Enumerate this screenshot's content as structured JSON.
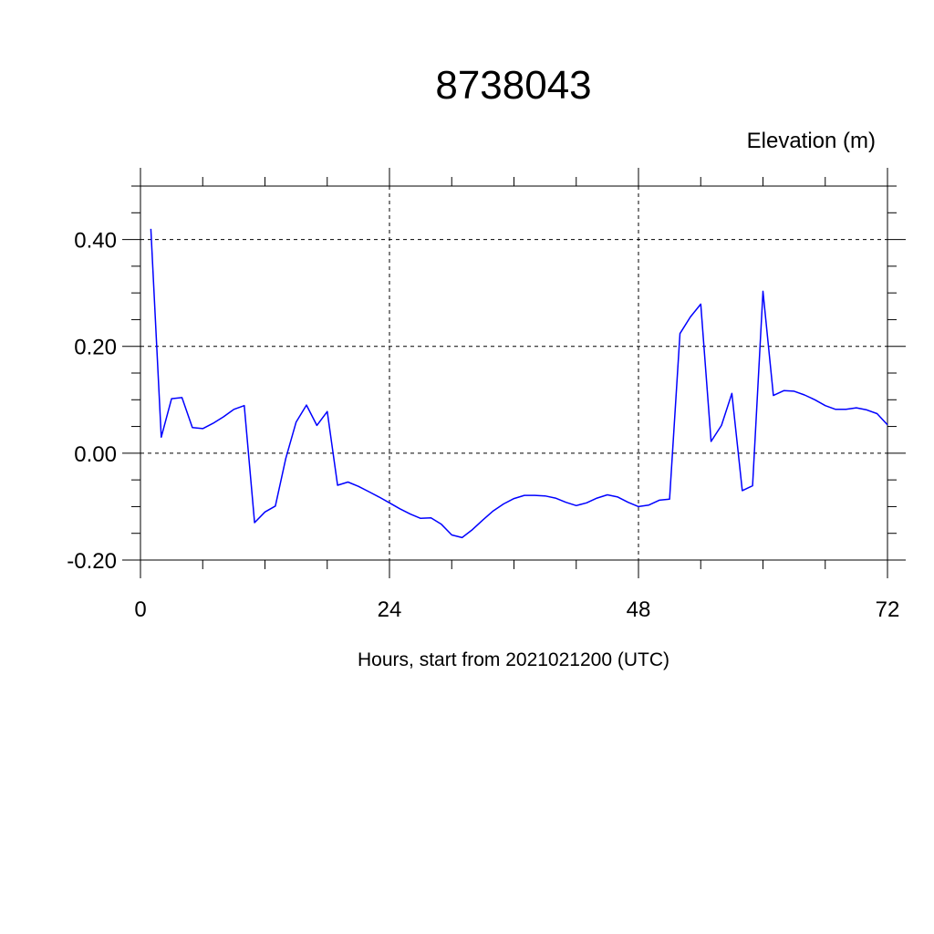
{
  "chart_data": {
    "type": "line",
    "title": "8738043",
    "ylabel": "Elevation (m)",
    "xlabel": "Hours, start from 2021021200 (UTC)",
    "xlim": [
      0,
      72
    ],
    "ylim": [
      -0.2,
      0.5
    ],
    "x_ticks": [
      0,
      24,
      48,
      72
    ],
    "x_tick_labels": [
      "0",
      "24",
      "48",
      "72"
    ],
    "y_ticks": [
      -0.2,
      0.0,
      0.2,
      0.4
    ],
    "y_tick_labels": [
      "-0.20",
      "0.00",
      "0.20",
      "0.40"
    ],
    "grid": true,
    "series": [
      {
        "color": "#0000ff",
        "x": [
          1,
          2,
          3,
          4,
          5,
          6,
          7,
          8,
          9,
          10,
          11,
          12,
          13,
          14,
          15,
          16,
          17,
          18,
          19,
          20,
          21,
          22,
          23,
          24,
          25,
          26,
          27,
          28,
          29,
          30,
          31,
          32,
          33,
          34,
          35,
          36,
          37,
          38,
          39,
          40,
          41,
          42,
          43,
          44,
          45,
          46,
          47,
          48,
          49,
          50,
          51,
          52,
          53,
          54,
          55,
          56,
          57,
          58,
          59,
          60,
          61,
          62,
          63,
          64,
          65,
          66,
          67,
          68,
          69,
          70,
          71,
          72
        ],
        "y": [
          0.42,
          0.03,
          0.102,
          0.104,
          0.048,
          0.046,
          0.056,
          0.068,
          0.082,
          0.089,
          -0.13,
          -0.11,
          -0.099,
          -0.01,
          0.058,
          0.09,
          0.052,
          0.078,
          -0.06,
          -0.054,
          -0.062,
          -0.072,
          -0.082,
          -0.093,
          -0.104,
          -0.114,
          -0.122,
          -0.121,
          -0.133,
          -0.153,
          -0.158,
          -0.143,
          -0.125,
          -0.108,
          -0.095,
          -0.085,
          -0.079,
          -0.079,
          -0.08,
          -0.084,
          -0.092,
          -0.098,
          -0.093,
          -0.084,
          -0.078,
          -0.082,
          -0.092,
          -0.1,
          -0.097,
          -0.088,
          -0.086,
          0.224,
          0.255,
          0.279,
          0.022,
          0.052,
          0.112,
          -0.07,
          -0.061,
          0.303,
          0.108,
          0.117,
          0.116,
          0.109,
          0.1,
          0.089,
          0.082,
          0.082,
          0.085,
          0.081,
          0.074,
          0.053
        ]
      }
    ]
  }
}
